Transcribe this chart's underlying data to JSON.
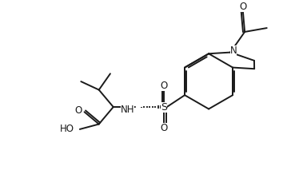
{
  "bg_color": "#ffffff",
  "line_color": "#1a1a1a",
  "line_width": 1.4,
  "figsize": [
    3.54,
    2.18
  ],
  "dpi": 100,
  "xlim": [
    0,
    10.5
  ],
  "ylim": [
    0,
    6.5
  ]
}
